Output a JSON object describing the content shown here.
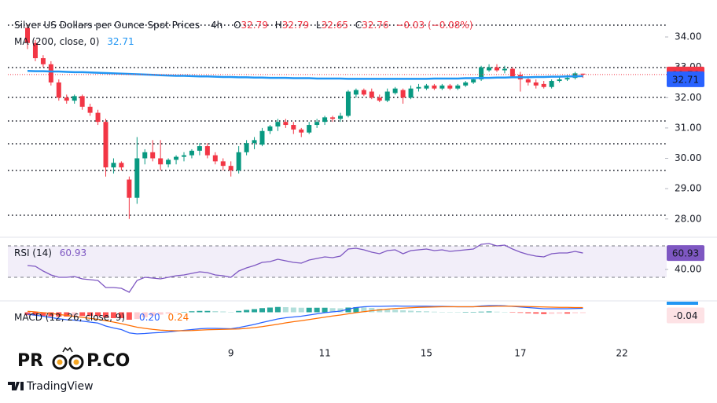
{
  "chart_data": [
    {
      "type": "candlestick",
      "title": "Silver US Dollars per Ounce Spot Prices",
      "interval": "4h",
      "ohlc_labels": [
        "O",
        "H",
        "L",
        "C"
      ],
      "change_label": "−0.03 (−0.08%)",
      "up_color": "#089981",
      "down_color": "#f23645",
      "categories": [
        null,
        null,
        null,
        null,
        null,
        null,
        null,
        null,
        null,
        null,
        null,
        null,
        null,
        null,
        null,
        null,
        null,
        null,
        null,
        null,
        null,
        null,
        null,
        null,
        null,
        null,
        "9",
        null,
        null,
        null,
        null,
        null,
        null,
        null,
        null,
        null,
        null,
        null,
        "11",
        null,
        null,
        null,
        null,
        null,
        null,
        null,
        null,
        null,
        null,
        null,
        null,
        "15",
        null,
        null,
        null,
        null,
        null,
        null,
        null,
        null,
        null,
        null,
        null,
        "17",
        null,
        null,
        null,
        null,
        null,
        null,
        null,
        null,
        null,
        null,
        null,
        null,
        "22",
        null,
        null,
        null
      ],
      "open": [
        34.3,
        33.8,
        33.3,
        33.1,
        32.5,
        32.0,
        31.9,
        32.05,
        31.7,
        31.5,
        31.2,
        29.7,
        29.85,
        29.3,
        28.7,
        30.0,
        30.2,
        30.0,
        29.8,
        29.95,
        30.05,
        30.1,
        30.25,
        30.4,
        30.1,
        29.9,
        29.75,
        29.6,
        30.2,
        30.5,
        30.45,
        30.9,
        31.05,
        31.2,
        31.1,
        30.95,
        30.85,
        31.1,
        31.2,
        31.35,
        31.3,
        31.4,
        32.1,
        32.25,
        32.2,
        32.0,
        31.9,
        32.15,
        32.25,
        32.0,
        32.3,
        32.3,
        32.4,
        32.3,
        32.4,
        32.3,
        32.4,
        32.5,
        32.6,
        32.9,
        33.0,
        32.9,
        32.95,
        32.75,
        32.6,
        32.5,
        32.45,
        32.35,
        32.55,
        32.6,
        32.65,
        32.79,
        null,
        null,
        null,
        null,
        null,
        null,
        null,
        null
      ],
      "high": [
        34.4,
        33.9,
        33.4,
        33.2,
        32.6,
        32.1,
        32.1,
        32.1,
        31.8,
        31.6,
        31.3,
        30.0,
        29.9,
        29.4,
        30.7,
        30.3,
        30.6,
        30.6,
        30.0,
        30.1,
        30.2,
        30.3,
        30.5,
        30.5,
        30.2,
        30.0,
        29.9,
        30.4,
        30.6,
        30.7,
        31.0,
        31.1,
        31.3,
        31.3,
        31.2,
        31.0,
        31.2,
        31.3,
        31.4,
        31.4,
        31.5,
        32.25,
        32.3,
        32.3,
        32.3,
        32.1,
        32.3,
        32.35,
        32.3,
        32.4,
        32.45,
        32.45,
        32.45,
        32.45,
        32.45,
        32.45,
        32.55,
        32.65,
        33.05,
        33.1,
        33.1,
        33.05,
        33.0,
        32.85,
        32.7,
        32.6,
        32.55,
        32.6,
        32.7,
        32.75,
        32.85,
        32.79,
        null,
        null,
        null,
        null,
        null,
        null,
        null,
        null
      ],
      "low": [
        33.6,
        33.2,
        33.0,
        32.4,
        31.9,
        31.8,
        31.8,
        31.6,
        31.4,
        31.1,
        29.4,
        29.5,
        29.6,
        28.0,
        28.5,
        29.8,
        29.9,
        29.6,
        29.7,
        29.8,
        29.9,
        30.0,
        30.1,
        30.0,
        29.8,
        29.6,
        29.4,
        29.5,
        30.1,
        30.3,
        30.4,
        30.8,
        30.9,
        31.0,
        30.8,
        30.7,
        30.8,
        31.0,
        31.1,
        31.2,
        31.2,
        31.35,
        32.0,
        32.05,
        31.95,
        31.85,
        31.85,
        32.1,
        31.8,
        31.95,
        32.2,
        32.25,
        32.25,
        32.25,
        32.25,
        32.25,
        32.35,
        32.45,
        32.55,
        32.85,
        32.85,
        32.8,
        32.65,
        32.2,
        32.4,
        32.3,
        32.3,
        32.3,
        32.5,
        32.55,
        32.6,
        32.65,
        null,
        null,
        null,
        null,
        null,
        null,
        null,
        null
      ],
      "close": [
        33.8,
        33.3,
        33.1,
        32.5,
        32.0,
        31.9,
        32.05,
        31.7,
        31.5,
        31.2,
        29.7,
        29.85,
        29.7,
        28.7,
        30.0,
        30.2,
        30.0,
        29.8,
        29.95,
        30.05,
        30.1,
        30.25,
        30.4,
        30.1,
        29.9,
        29.75,
        29.6,
        30.2,
        30.5,
        30.6,
        30.9,
        31.05,
        31.2,
        31.1,
        30.95,
        30.85,
        31.1,
        31.2,
        31.35,
        31.3,
        31.4,
        32.2,
        32.25,
        32.1,
        32.0,
        31.9,
        32.2,
        32.3,
        32.0,
        32.3,
        32.35,
        32.4,
        32.3,
        32.4,
        32.3,
        32.4,
        32.5,
        32.6,
        33.0,
        33.0,
        32.9,
        32.95,
        32.7,
        32.6,
        32.5,
        32.4,
        32.35,
        32.55,
        32.6,
        32.65,
        32.8,
        32.76,
        null,
        null,
        null,
        null,
        null,
        null,
        null,
        null
      ],
      "series": [
        {
          "name": "MA (200, close, 0)",
          "color": "#2196f3",
          "values": [
            32.88,
            32.87,
            32.87,
            32.86,
            32.86,
            32.85,
            32.84,
            32.84,
            32.83,
            32.82,
            32.81,
            32.8,
            32.79,
            32.78,
            32.77,
            32.76,
            32.75,
            32.74,
            32.73,
            32.72,
            32.72,
            32.71,
            32.7,
            32.7,
            32.69,
            32.68,
            32.68,
            32.67,
            32.67,
            32.66,
            32.66,
            32.65,
            32.65,
            32.65,
            32.64,
            32.64,
            32.64,
            32.63,
            32.63,
            32.63,
            32.63,
            32.62,
            32.62,
            32.62,
            32.62,
            32.62,
            32.62,
            32.62,
            32.62,
            32.62,
            32.62,
            32.62,
            32.63,
            32.63,
            32.63,
            32.63,
            32.64,
            32.64,
            32.65,
            32.65,
            32.66,
            32.66,
            32.67,
            32.67,
            32.67,
            32.68,
            32.68,
            32.69,
            32.69,
            32.7,
            32.7,
            32.71,
            null,
            null,
            null,
            null,
            null,
            null,
            null,
            null
          ]
        }
      ],
      "ylim": [
        27.45,
        34.7
      ],
      "yticks": [
        {
          "value": 34,
          "label": "34.00"
        },
        {
          "value": 33,
          "label": "33.00"
        },
        {
          "value": 32,
          "label": "32.00"
        },
        {
          "value": 31,
          "label": "31.00"
        },
        {
          "value": 30,
          "label": "30.00"
        },
        {
          "value": 29,
          "label": "29.00"
        },
        {
          "value": 28,
          "label": "28.00"
        }
      ]
    },
    {
      "type": "line",
      "title": "RSI (14)",
      "color": "#7e57c2",
      "values": [
        45,
        44,
        38,
        33,
        30,
        30,
        31,
        28,
        27,
        26,
        17,
        17,
        16,
        11,
        26,
        30,
        29,
        28,
        30,
        32,
        33,
        35,
        37,
        36,
        33,
        32,
        30,
        38,
        42,
        45,
        49,
        50,
        53,
        51,
        49,
        48,
        52,
        54,
        56,
        55,
        57,
        66,
        67,
        65,
        62,
        60,
        64,
        65,
        60,
        64,
        65,
        66,
        64,
        65,
        63,
        64,
        65,
        66,
        72,
        73,
        70,
        71,
        66,
        62,
        59,
        57,
        56,
        60,
        61,
        61,
        63,
        60.93
      ],
      "band": [
        30,
        70
      ],
      "ylim": [
        0,
        78
      ],
      "yticks": [
        {
          "value": 40,
          "label": "40.00"
        }
      ]
    },
    {
      "type": "macd",
      "title": "MACD (12, 26, close, 9)",
      "series": [
        {
          "color": "#2962ff",
          "values": [
            -0.1,
            -0.15,
            -0.2,
            -0.27,
            -0.33,
            -0.38,
            -0.4,
            -0.45,
            -0.5,
            -0.55,
            -0.7,
            -0.8,
            -0.88,
            -1.05,
            -1.1,
            -1.08,
            -1.05,
            -1.03,
            -1.0,
            -0.96,
            -0.92,
            -0.88,
            -0.84,
            -0.82,
            -0.82,
            -0.83,
            -0.84,
            -0.78,
            -0.7,
            -0.62,
            -0.52,
            -0.43,
            -0.34,
            -0.28,
            -0.24,
            -0.2,
            -0.14,
            -0.08,
            -0.02,
            0.02,
            0.06,
            0.16,
            0.24,
            0.28,
            0.3,
            0.3,
            0.31,
            0.32,
            0.31,
            0.31,
            0.31,
            0.31,
            0.3,
            0.3,
            0.29,
            0.28,
            0.28,
            0.28,
            0.32,
            0.34,
            0.34,
            0.33,
            0.3,
            0.27,
            0.24,
            0.21,
            0.18,
            0.18,
            0.18,
            0.18,
            0.19,
            0.2
          ],
          "value_labels": {
            "71": "0.20"
          }
        },
        {
          "color": "#ff6d00",
          "values": [
            0.05,
            0.02,
            -0.02,
            -0.06,
            -0.11,
            -0.16,
            -0.21,
            -0.26,
            -0.31,
            -0.36,
            -0.43,
            -0.5,
            -0.58,
            -0.67,
            -0.76,
            -0.82,
            -0.87,
            -0.91,
            -0.93,
            -0.94,
            -0.94,
            -0.93,
            -0.91,
            -0.89,
            -0.88,
            -0.87,
            -0.86,
            -0.85,
            -0.82,
            -0.78,
            -0.73,
            -0.67,
            -0.61,
            -0.54,
            -0.48,
            -0.43,
            -0.37,
            -0.31,
            -0.25,
            -0.19,
            -0.14,
            -0.08,
            -0.02,
            0.03,
            0.08,
            0.12,
            0.16,
            0.19,
            0.21,
            0.23,
            0.25,
            0.26,
            0.27,
            0.28,
            0.28,
            0.28,
            0.28,
            0.28,
            0.29,
            0.3,
            0.31,
            0.31,
            0.31,
            0.3,
            0.29,
            0.28,
            0.27,
            0.26,
            0.25,
            0.25,
            0.24,
            0.24
          ],
          "value_labels": {
            "71": "0.24"
          }
        }
      ],
      "histogram": {
        "colors": [
          "#26a69a",
          "#b2dfdb",
          "#ff5252",
          "#ffcdd2"
        ],
        "values": [
          -0.15,
          -0.17,
          -0.18,
          -0.21,
          -0.22,
          -0.22,
          -0.19,
          -0.19,
          -0.19,
          -0.19,
          -0.27,
          -0.3,
          -0.3,
          -0.38,
          -0.34,
          -0.26,
          -0.18,
          -0.12,
          -0.07,
          -0.02,
          0.02,
          0.05,
          0.07,
          0.07,
          0.06,
          0.04,
          0.02,
          0.07,
          0.12,
          0.16,
          0.21,
          0.24,
          0.27,
          0.26,
          0.24,
          0.23,
          0.23,
          0.23,
          0.23,
          0.21,
          0.2,
          0.24,
          0.26,
          0.25,
          0.22,
          0.18,
          0.15,
          0.13,
          0.1,
          0.08,
          0.06,
          0.05,
          0.03,
          0.02,
          0.01,
          0.0,
          0.0,
          0.0,
          0.03,
          0.04,
          0.03,
          0.02,
          -0.01,
          -0.03,
          -0.05,
          -0.07,
          -0.09,
          -0.08,
          -0.07,
          -0.07,
          -0.05,
          -0.04
        ]
      },
      "ylim": [
        -1.3,
        0.5
      ]
    }
  ],
  "branding": {
    "logo_left": "PR",
    "logo_right": "P.CO",
    "platform": "TradingView"
  }
}
